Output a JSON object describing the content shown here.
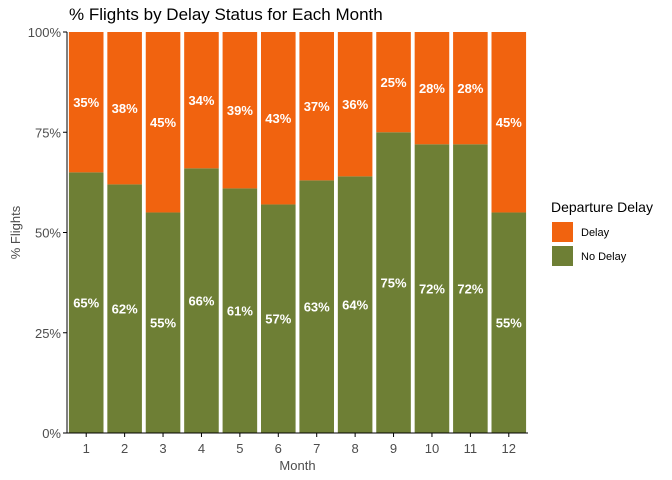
{
  "chart_data": {
    "type": "bar",
    "stacked": true,
    "title": "% Flights by Delay Status for Each Month",
    "xlabel": "Month",
    "ylabel": "% Flights",
    "categories": [
      "1",
      "2",
      "3",
      "4",
      "5",
      "6",
      "7",
      "8",
      "9",
      "10",
      "11",
      "12"
    ],
    "ylim": [
      0,
      100
    ],
    "yticks": [
      "0%",
      "25%",
      "50%",
      "75%",
      "100%"
    ],
    "grid": false,
    "legend": {
      "title": "Departure Delay",
      "position": "right"
    },
    "series": [
      {
        "name": "No Delay",
        "color": "#6e7f35",
        "values": [
          65,
          62,
          55,
          66,
          61,
          57,
          63,
          64,
          75,
          72,
          72,
          55
        ],
        "labels": [
          "65%",
          "62%",
          "55%",
          "66%",
          "61%",
          "57%",
          "63%",
          "64%",
          "75%",
          "72%",
          "72%",
          "55%"
        ]
      },
      {
        "name": "Delay",
        "color": "#f1630f",
        "values": [
          35,
          38,
          45,
          34,
          39,
          43,
          37,
          36,
          25,
          28,
          28,
          45
        ],
        "labels": [
          "35%",
          "38%",
          "45%",
          "34%",
          "39%",
          "43%",
          "37%",
          "36%",
          "25%",
          "28%",
          "28%",
          "45%"
        ]
      }
    ]
  }
}
